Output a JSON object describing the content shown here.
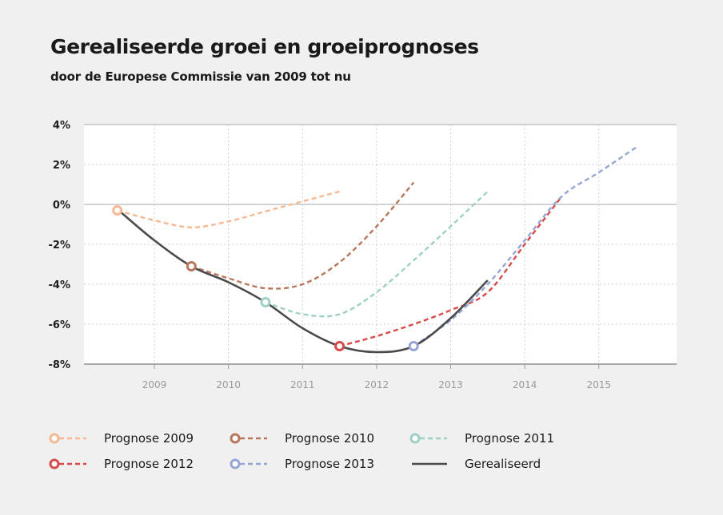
{
  "header": {
    "title": "Gerealiseerde groei en groeiprognoses",
    "subtitle": "door de Europese Commissie van 2009 tot nu"
  },
  "chart_data": {
    "type": "line",
    "title": "Gerealiseerde groei en groeiprognoses",
    "subtitle": "door de Europese Commissie van 2009 tot nu",
    "xlabel": "",
    "ylabel": "",
    "x_ticks": [
      "2009",
      "2010",
      "2011",
      "2012",
      "2013",
      "2014",
      "2015"
    ],
    "y_ticks": [
      "4%",
      "2%",
      "0%",
      "-2%",
      "-4%",
      "-6%",
      "-8%"
    ],
    "xlim": [
      2008.05,
      2016.05
    ],
    "ylim": [
      -8,
      4
    ],
    "grid": true,
    "legend_position": "bottom",
    "series": [
      {
        "name": "Prognose 2009",
        "color": "#f6b894",
        "style": "dashed",
        "marker_start": true,
        "x": [
          2008.5,
          2009.0,
          2009.5,
          2010.0,
          2010.5,
          2011.0,
          2011.5
        ],
        "y": [
          -0.3,
          -0.8,
          -1.15,
          -0.85,
          -0.35,
          0.15,
          0.65
        ]
      },
      {
        "name": "Prognose 2010",
        "color": "#b9785e",
        "style": "dashed",
        "marker_start": true,
        "x": [
          2009.5,
          2010.0,
          2010.5,
          2011.0,
          2011.5,
          2012.0,
          2012.5
        ],
        "y": [
          -3.1,
          -3.7,
          -4.2,
          -4.0,
          -2.9,
          -1.1,
          1.1
        ]
      },
      {
        "name": "Prognose 2011",
        "color": "#9fcfc5",
        "style": "dashed",
        "marker_start": true,
        "x": [
          2010.5,
          2011.0,
          2011.5,
          2012.0,
          2012.5,
          2013.0,
          2013.5
        ],
        "y": [
          -4.9,
          -5.5,
          -5.5,
          -4.4,
          -2.8,
          -1.1,
          0.65
        ]
      },
      {
        "name": "Prognose 2012",
        "color": "#d64a4a",
        "style": "dashed",
        "marker_start": true,
        "x": [
          2011.5,
          2012.0,
          2012.5,
          2013.0,
          2013.5,
          2014.0,
          2014.5
        ],
        "y": [
          -7.1,
          -6.6,
          -6.0,
          -5.3,
          -4.4,
          -2.0,
          0.4
        ]
      },
      {
        "name": "Prognose 2013",
        "color": "#96a5d3",
        "style": "dashed",
        "marker_start": true,
        "x": [
          2012.5,
          2013.0,
          2013.5,
          2014.0,
          2014.5,
          2015.0,
          2015.5
        ],
        "y": [
          -7.1,
          -5.8,
          -4.0,
          -1.8,
          0.4,
          1.6,
          2.85
        ]
      },
      {
        "name": "Gerealiseerd",
        "color": "#4b4b4b",
        "style": "solid",
        "marker_start": false,
        "x": [
          2008.55,
          2009.0,
          2009.5,
          2010.0,
          2010.5,
          2011.0,
          2011.5,
          2012.0,
          2012.5,
          2013.0,
          2013.5
        ],
        "y": [
          -0.4,
          -1.8,
          -3.1,
          -3.9,
          -4.9,
          -6.2,
          -7.1,
          -7.4,
          -7.1,
          -5.7,
          -3.8
        ]
      }
    ]
  },
  "legend": {
    "items": [
      {
        "label": "Prognose 2009",
        "color": "#f6b894",
        "style": "dashed"
      },
      {
        "label": "Prognose 2010",
        "color": "#b9785e",
        "style": "dashed"
      },
      {
        "label": "Prognose 2011",
        "color": "#9fcfc5",
        "style": "dashed"
      },
      {
        "label": "Prognose 2012",
        "color": "#d64a4a",
        "style": "dashed"
      },
      {
        "label": "Prognose 2013",
        "color": "#96a5d3",
        "style": "dashed"
      },
      {
        "label": "Gerealiseerd",
        "color": "#4b4b4b",
        "style": "solid"
      }
    ]
  }
}
